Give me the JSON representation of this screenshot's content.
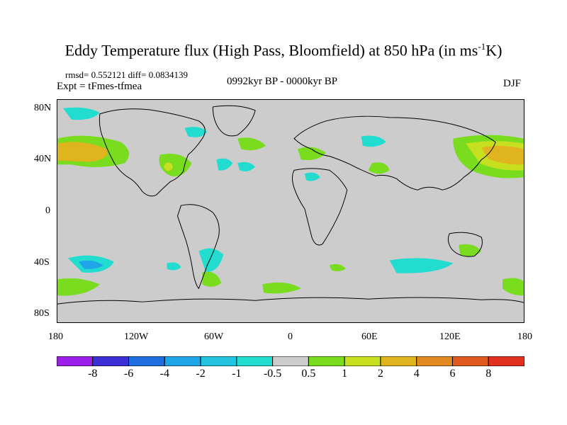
{
  "title": {
    "main": "Eddy Temperature flux (High Pass, Bloomfield) at 850 hPa (in ms",
    "sup": "-1",
    "tail": "K)"
  },
  "stats": "rmsd= 0.552121 diff= 0.0834139",
  "expt": "Expt = tFmes-tfmea",
  "period": "0992kyr BP - 0000kyr BP",
  "season": "DJF",
  "axes": {
    "y_ticks": [
      "80N",
      "40N",
      "0",
      "40S",
      "80S"
    ],
    "x_ticks": [
      "180",
      "120W",
      "60W",
      "0",
      "60E",
      "120E",
      "180"
    ]
  },
  "colorbar": {
    "labels": [
      "-8",
      "-6",
      "-4",
      "-2",
      "-1",
      "-0.5",
      "0.5",
      "1",
      "2",
      "4",
      "6",
      "8"
    ],
    "colors": [
      "#9b1fe8",
      "#3c2fd6",
      "#1f6fe0",
      "#1fa6e8",
      "#22c4e0",
      "#22dcd0",
      "#cccccc",
      "#7adc1f",
      "#c6e01f",
      "#e0b41f",
      "#e08a1f",
      "#e05a1f",
      "#e0301f"
    ]
  },
  "map": {
    "land_color": "#000000",
    "background_color": "#cccccc"
  }
}
